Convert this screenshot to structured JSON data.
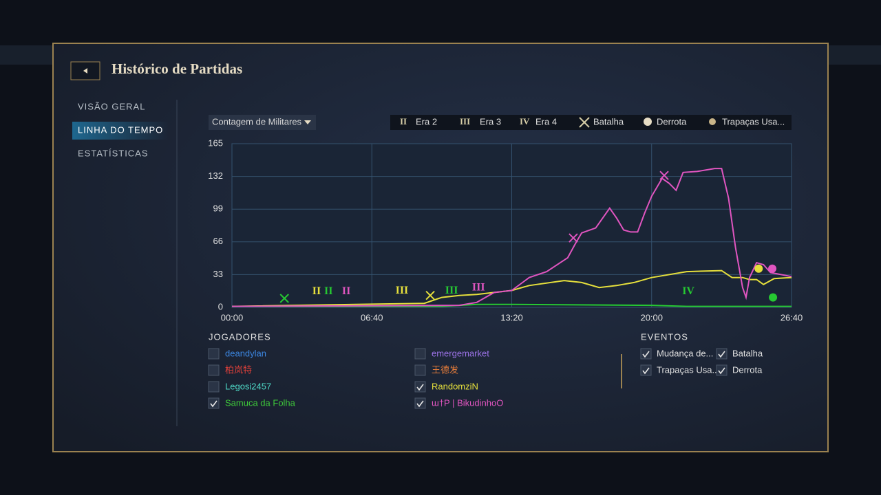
{
  "header": {
    "title": "Histórico de Partidas"
  },
  "nav": {
    "items": [
      "VISÃO GERAL",
      "LINHA DO TEMPO",
      "ESTATÍSTICAS"
    ],
    "active": 1
  },
  "dropdown": "Contagem de Militares",
  "legend": [
    {
      "icon": "II",
      "label": "Era 2"
    },
    {
      "icon": "III",
      "label": "Era 3"
    },
    {
      "icon": "IV",
      "label": "Era 4"
    },
    {
      "label": "Batalha"
    },
    {
      "label": "Derrota"
    },
    {
      "label": "Trapaças Usa..."
    }
  ],
  "chart_data": {
    "type": "line",
    "xlim": [
      0,
      1600
    ],
    "xticks": [
      {
        "value": 0,
        "label": "00:00"
      },
      {
        "value": 400,
        "label": "06:40"
      },
      {
        "value": 800,
        "label": "13:20"
      },
      {
        "value": 1200,
        "label": "20:00"
      },
      {
        "value": 1600,
        "label": "26:40"
      }
    ],
    "ylim": [
      0,
      165
    ],
    "yticks": [
      0,
      33,
      66,
      99,
      132,
      165
    ],
    "grid": true,
    "series": [
      {
        "color": "#26c832",
        "x": [
          0,
          600,
          700,
          800,
          1200,
          1300,
          1600
        ],
        "values": [
          1,
          1,
          3,
          3,
          2,
          1,
          1
        ]
      },
      {
        "color": "#e6e03c",
        "x": [
          0,
          550,
          600,
          650,
          700,
          800,
          850,
          950,
          1000,
          1050,
          1100,
          1150,
          1200,
          1300,
          1400,
          1430,
          1460,
          1480,
          1500,
          1520,
          1550,
          1600
        ],
        "values": [
          1,
          4,
          10,
          12,
          13,
          17,
          22,
          27,
          25,
          20,
          22,
          25,
          30,
          36,
          37,
          30,
          30,
          28,
          28,
          23,
          29,
          30
        ]
      },
      {
        "color": "#e055c0",
        "x": [
          0,
          650,
          700,
          750,
          800,
          850,
          900,
          960,
          980,
          1000,
          1040,
          1080,
          1100,
          1120,
          1140,
          1160,
          1180,
          1200,
          1230,
          1250,
          1270,
          1290,
          1330,
          1380,
          1400,
          1420,
          1440,
          1460,
          1470,
          1480,
          1500,
          1520,
          1540,
          1600
        ],
        "values": [
          1,
          2,
          5,
          15,
          17,
          30,
          36,
          50,
          63,
          75,
          80,
          100,
          90,
          78,
          76,
          76,
          95,
          112,
          130,
          125,
          118,
          136,
          137,
          140,
          140,
          110,
          60,
          20,
          10,
          30,
          45,
          43,
          35,
          31
        ]
      }
    ],
    "markers": [
      {
        "kind": "battle",
        "color": "#26c832",
        "x": 150,
        "y": 9
      },
      {
        "kind": "era",
        "label": "II",
        "color": "#e6e03c",
        "x": 242,
        "y": 10
      },
      {
        "kind": "era",
        "label": "II",
        "color": "#26c832",
        "x": 276,
        "y": 10
      },
      {
        "kind": "era",
        "label": "II",
        "color": "#e055c0",
        "x": 327,
        "y": 10
      },
      {
        "kind": "era",
        "label": "III",
        "color": "#e6e03c",
        "x": 486,
        "y": 11
      },
      {
        "kind": "battle",
        "color": "#e6e03c",
        "x": 567,
        "y": 12
      },
      {
        "kind": "era",
        "label": "III",
        "color": "#26c832",
        "x": 628,
        "y": 11
      },
      {
        "kind": "era",
        "label": "III",
        "color": "#e055c0",
        "x": 705,
        "y": 14
      },
      {
        "kind": "battle",
        "color": "#e055c0",
        "x": 976,
        "y": 70
      },
      {
        "kind": "battle",
        "color": "#e055c0",
        "x": 1236,
        "y": 133
      },
      {
        "kind": "era",
        "label": "IV",
        "color": "#26c832",
        "x": 1305,
        "y": 10
      },
      {
        "kind": "defeat",
        "color": "#e6e03c",
        "x": 1506,
        "y": 39
      },
      {
        "kind": "defeat",
        "color": "#e055c0",
        "x": 1545,
        "y": 39
      },
      {
        "kind": "defeat",
        "color": "#26c832",
        "x": 1547,
        "y": 10
      }
    ]
  },
  "players": {
    "title": "JOGADORES",
    "items": [
      {
        "name": "deandylan",
        "color": "#3c86e0",
        "checked": false
      },
      {
        "name": "emergemarket",
        "color": "#9b72e6",
        "checked": false
      },
      {
        "name": "柏岚特",
        "color": "#e0403a",
        "checked": false
      },
      {
        "name": "王德发",
        "color": "#e07a3a",
        "checked": false
      },
      {
        "name": "Legosi2457",
        "color": "#4ed8c6",
        "checked": false
      },
      {
        "name": "RandomziN",
        "color": "#e6e03c",
        "checked": true
      },
      {
        "name": "Samuca da Folha",
        "color": "#3ec83a",
        "checked": true
      },
      {
        "name": "ɯ†P | BikudinhoO",
        "color": "#e055c0",
        "checked": true
      }
    ]
  },
  "events": {
    "title": "EVENTOS",
    "items": [
      {
        "label": "Mudança de...",
        "checked": true
      },
      {
        "label": "Batalha",
        "checked": true
      },
      {
        "label": "Trapaças Usa...",
        "checked": true
      },
      {
        "label": "Derrota",
        "checked": true
      }
    ]
  }
}
